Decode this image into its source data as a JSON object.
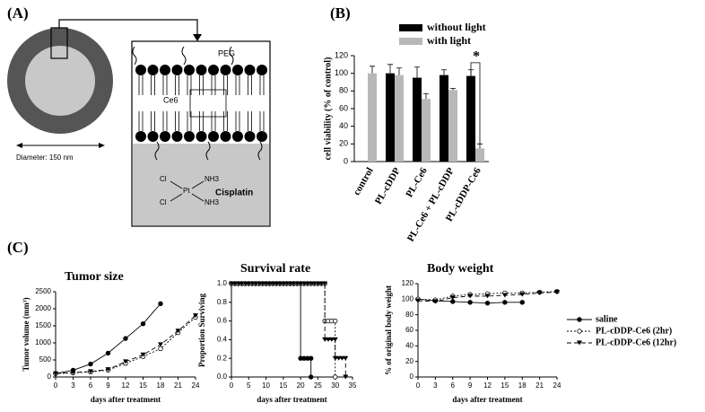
{
  "panels": {
    "a": "(A)",
    "b": "(B)",
    "c": "(C)"
  },
  "diagram": {
    "diameter": "Diameter: 150 nm",
    "peg": "PEG",
    "ce6": "Ce6",
    "cisplatin": "Cisplatin",
    "cisplatin_structure": [
      "Cl",
      "Cl",
      "Pt",
      "NH3",
      "NH3"
    ]
  },
  "chart_data": [
    {
      "type": "bar",
      "y_label": "cell viability (% of control)",
      "categories": [
        "control",
        "PL-cDDP",
        "PL-Ce6",
        "PL-Ce6 + PL-cDDP",
        "PL-cDDP-Ce6"
      ],
      "series": [
        {
          "name": "without light",
          "color": "#000000",
          "values": [
            null,
            100,
            95,
            98,
            97
          ],
          "errors": [
            null,
            10,
            12,
            6,
            7
          ]
        },
        {
          "name": "with light",
          "color": "#b8b8b8",
          "values": [
            100,
            98,
            71,
            81,
            15
          ],
          "errors": [
            8,
            8,
            6,
            2,
            5
          ]
        }
      ],
      "ylim": [
        0,
        120
      ],
      "yticks": [
        0,
        20,
        40,
        60,
        80,
        100,
        120
      ],
      "annotation": "*"
    },
    {
      "type": "line",
      "title": "Tumor size",
      "x_label": "days after treatment",
      "y_label": "Tumor volume (mm³)",
      "xlim": [
        0,
        24
      ],
      "xticks": [
        0,
        3,
        6,
        9,
        12,
        15,
        18,
        21,
        24
      ],
      "ylim": [
        0,
        2500
      ],
      "yticks": [
        0,
        500,
        1000,
        1500,
        2000,
        2500
      ],
      "series": [
        {
          "marker": "circle",
          "dash": "none",
          "x": [
            0,
            3,
            6,
            9,
            12,
            15,
            18
          ],
          "values": [
            100,
            200,
            380,
            700,
            1130,
            1560,
            2150
          ]
        },
        {
          "marker": "open",
          "dash": "2,2",
          "x": [
            0,
            3,
            6,
            9,
            12,
            15,
            18,
            21,
            24
          ],
          "values": [
            100,
            120,
            150,
            200,
            400,
            600,
            830,
            1300,
            1750
          ]
        },
        {
          "marker": "triangle",
          "dash": "5,3",
          "x": [
            0,
            3,
            6,
            9,
            12,
            15,
            18,
            21,
            24
          ],
          "values": [
            100,
            130,
            160,
            220,
            450,
            650,
            950,
            1350,
            1800
          ]
        }
      ]
    },
    {
      "type": "line",
      "title": "Survival rate",
      "x_label": "days after treatment",
      "y_label": "Proportion Surviving",
      "xlim": [
        0,
        35
      ],
      "xticks": [
        0,
        5,
        10,
        15,
        20,
        25,
        30,
        35
      ],
      "ylim": [
        0,
        1
      ],
      "yticks": [
        {
          "value": 0,
          "label": "0.0"
        },
        0.2,
        0.4,
        0.6,
        0.8,
        {
          "value": 1,
          "label": "1.0"
        }
      ],
      "series": [
        {
          "marker": "circle",
          "dash": "none",
          "x": [
            0,
            1,
            2,
            3,
            4,
            5,
            6,
            7,
            8,
            9,
            10,
            11,
            12,
            13,
            14,
            15,
            16,
            17,
            18,
            19,
            20,
            20,
            21,
            22,
            23,
            23
          ],
          "values": [
            1,
            1,
            1,
            1,
            1,
            1,
            1,
            1,
            1,
            1,
            1,
            1,
            1,
            1,
            1,
            1,
            1,
            1,
            1,
            1,
            1,
            0.2,
            0.2,
            0.2,
            0.2,
            0
          ]
        },
        {
          "marker": "open",
          "dash": "2,2",
          "x": [
            0,
            1,
            2,
            3,
            4,
            5,
            6,
            7,
            8,
            9,
            10,
            11,
            12,
            13,
            14,
            15,
            16,
            17,
            18,
            19,
            20,
            21,
            22,
            23,
            24,
            25,
            26,
            27,
            27,
            28,
            29,
            30,
            30
          ],
          "values": [
            1,
            1,
            1,
            1,
            1,
            1,
            1,
            1,
            1,
            1,
            1,
            1,
            1,
            1,
            1,
            1,
            1,
            1,
            1,
            1,
            1,
            1,
            1,
            1,
            1,
            1,
            1,
            1,
            0.6,
            0.6,
            0.6,
            0.6,
            0
          ]
        },
        {
          "marker": "triangle",
          "dash": "5,3",
          "x": [
            0,
            1,
            2,
            3,
            4,
            5,
            6,
            7,
            8,
            9,
            10,
            11,
            12,
            13,
            14,
            15,
            16,
            17,
            18,
            19,
            20,
            21,
            22,
            23,
            24,
            25,
            26,
            27,
            27,
            28,
            29,
            30,
            30,
            31,
            32,
            33,
            33
          ],
          "values": [
            1,
            1,
            1,
            1,
            1,
            1,
            1,
            1,
            1,
            1,
            1,
            1,
            1,
            1,
            1,
            1,
            1,
            1,
            1,
            1,
            1,
            1,
            1,
            1,
            1,
            1,
            1,
            1,
            0.4,
            0.4,
            0.4,
            0.4,
            0.2,
            0.2,
            0.2,
            0.2,
            0
          ]
        }
      ]
    },
    {
      "type": "line",
      "title": "Body weight",
      "x_label": "days after treatment",
      "y_label": "% of original body weight",
      "xlim": [
        0,
        24
      ],
      "xticks": [
        0,
        3,
        6,
        9,
        12,
        15,
        18,
        21,
        24
      ],
      "ylim": [
        0,
        120
      ],
      "yticks": [
        0,
        20,
        40,
        60,
        80,
        100,
        120
      ],
      "series": [
        {
          "name": "saline",
          "marker": "circle",
          "dash": "none",
          "x": [
            0,
            3,
            6,
            9,
            12,
            15,
            18
          ],
          "values": [
            100,
            98,
            97,
            96,
            95,
            96,
            96
          ]
        },
        {
          "name": "PL-cDDP-Ce6 (2hr)",
          "marker": "open",
          "dash": "2,2",
          "x": [
            0,
            3,
            6,
            9,
            12,
            15,
            18,
            21,
            24
          ],
          "values": [
            100,
            99,
            104,
            106,
            107,
            108,
            108,
            109,
            110
          ]
        },
        {
          "name": "PL-cDDP-Ce6 (12hr)",
          "marker": "triangle",
          "dash": "5,3",
          "x": [
            0,
            3,
            6,
            9,
            12,
            15,
            18,
            21,
            24
          ],
          "values": [
            98,
            97,
            102,
            104,
            104,
            105,
            106,
            108,
            109
          ]
        }
      ]
    }
  ]
}
